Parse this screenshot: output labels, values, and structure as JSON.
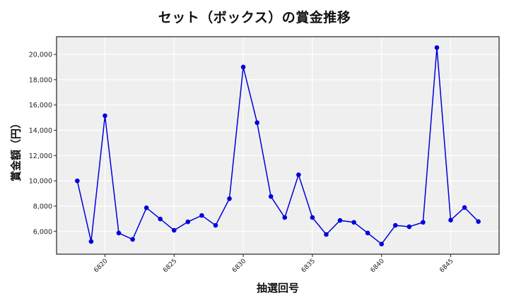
{
  "chart_data": {
    "type": "line",
    "title": "セット（ボックス）の賞金推移",
    "xlabel": "抽選回号",
    "ylabel": "賞金額（円）",
    "x": [
      6818,
      6819,
      6820,
      6821,
      6822,
      6823,
      6824,
      6825,
      6826,
      6827,
      6828,
      6829,
      6830,
      6831,
      6832,
      6833,
      6834,
      6835,
      6836,
      6837,
      6838,
      6839,
      6840,
      6841,
      6842,
      6843,
      6844,
      6845,
      6846,
      6847
    ],
    "series": [
      {
        "name": "賞金額",
        "color": "#0000dd",
        "values": [
          10000,
          5200,
          15150,
          5870,
          5370,
          7870,
          6980,
          6090,
          6760,
          7260,
          6480,
          8590,
          19000,
          14600,
          8760,
          7100,
          10480,
          7100,
          5760,
          6870,
          6720,
          5870,
          5000,
          6480,
          6370,
          6720,
          20540,
          6890,
          7890,
          6780
        ]
      }
    ],
    "xticks": [
      6820,
      6825,
      6830,
      6835,
      6840,
      6845
    ],
    "xtick_labels": [
      "6820",
      "6825",
      "6830",
      "6835",
      "6840",
      "6845"
    ],
    "yticks": [
      6000,
      8000,
      10000,
      12000,
      14000,
      16000,
      18000,
      20000
    ],
    "ytick_labels": [
      "6,000",
      "8,000",
      "10,000",
      "12,000",
      "14,000",
      "16,000",
      "18,000",
      "20,000"
    ],
    "xlim": [
      6816.5,
      6848.5
    ],
    "ylim": [
      4200,
      21400
    ],
    "grid": true,
    "legend": "none",
    "background": "#efefef"
  }
}
